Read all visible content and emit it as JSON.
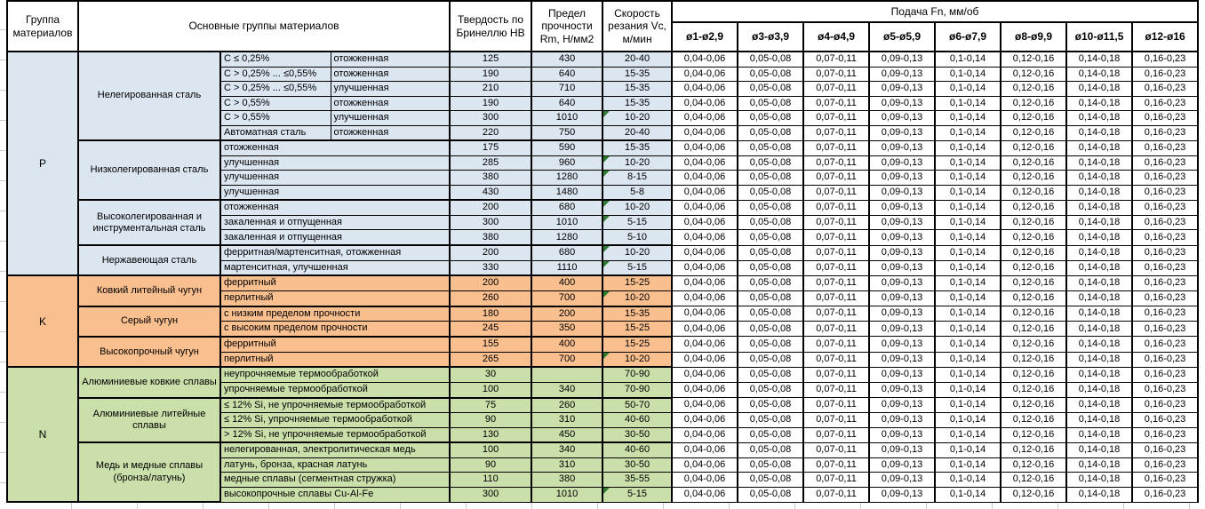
{
  "header": {
    "col_group": "Группа материалов",
    "col_main": "Основные группы материалов",
    "col_hb": "Твердость по Бринеллю HB",
    "col_rm": "Предел прочности Rm, Н/мм2",
    "col_vc": "Скорость резания Vc, м/мин",
    "feed_title": "Подача Fn, мм/об",
    "feed_cols": [
      "ø1-ø2,9",
      "ø3-ø3,9",
      "ø4-ø4,9",
      "ø5-ø5,9",
      "ø6-ø7,9",
      "ø8-ø9,9",
      "ø10-ø11,5",
      "ø12-ø16"
    ]
  },
  "feed_values": [
    "0,04-0,06",
    "0,05-0,08",
    "0,07-0,11",
    "0,09-0,13",
    "0,1-0,14",
    "0,12-0,16",
    "0,14-0,18",
    "0,16-0,23"
  ],
  "colors": {
    "group_p": "#dce6f1",
    "group_k": "#fabf8f",
    "group_n": "#cadfa9",
    "flag_triangle": "#2e7d32",
    "border": "#000000"
  },
  "groups": [
    {
      "letter": "P",
      "color": "#dce6f1",
      "subgroups": [
        {
          "name": "Нелегированная сталь",
          "rows": [
            {
              "desc": [
                "C ≤ 0,25%",
                "отожженная"
              ],
              "hb": "125",
              "rm": "430",
              "vc": "20-40",
              "flag": false
            },
            {
              "desc": [
                "C > 0,25% ... ≤0,55%",
                "отожженная"
              ],
              "hb": "190",
              "rm": "640",
              "vc": "15-35",
              "flag": false
            },
            {
              "desc": [
                "C > 0,25% ... ≤0,55%",
                "улучшенная"
              ],
              "hb": "210",
              "rm": "710",
              "vc": "15-35",
              "flag": false
            },
            {
              "desc": [
                "C > 0,55%",
                "отожженная"
              ],
              "hb": "190",
              "rm": "640",
              "vc": "15-35",
              "flag": false
            },
            {
              "desc": [
                "C > 0,55%",
                "улучшенная"
              ],
              "hb": "300",
              "rm": "1010",
              "vc": "10-20",
              "flag": true
            },
            {
              "desc": [
                "Автоматная сталь",
                "отожженная"
              ],
              "hb": "220",
              "rm": "750",
              "vc": "20-40",
              "flag": false
            }
          ]
        },
        {
          "name": "Низколегированная сталь",
          "rows": [
            {
              "desc": [
                "отожженная"
              ],
              "hb": "175",
              "rm": "590",
              "vc": "15-35",
              "flag": false
            },
            {
              "desc": [
                "улучшенная"
              ],
              "hb": "285",
              "rm": "960",
              "vc": "10-20",
              "flag": true
            },
            {
              "desc": [
                "улучшенная"
              ],
              "hb": "380",
              "rm": "1280",
              "vc": "8-15",
              "flag": true
            },
            {
              "desc": [
                "улучшенная"
              ],
              "hb": "430",
              "rm": "1480",
              "vc": "5-8",
              "flag": false
            }
          ]
        },
        {
          "name": "Высоколегированная и инструментальная сталь",
          "rows": [
            {
              "desc": [
                "отожженная"
              ],
              "hb": "200",
              "rm": "680",
              "vc": "10-20",
              "flag": true
            },
            {
              "desc": [
                "закаленная и отпущенная"
              ],
              "hb": "300",
              "rm": "1010",
              "vc": "5-15",
              "flag": true
            },
            {
              "desc": [
                "закаленная и отпущенная"
              ],
              "hb": "380",
              "rm": "1280",
              "vc": "5-10",
              "flag": false
            }
          ]
        },
        {
          "name": "Нержавеющая сталь",
          "rows": [
            {
              "desc": [
                "ферритная/мартенситная, отожженная"
              ],
              "hb": "200",
              "rm": "680",
              "vc": "10-20",
              "flag": true
            },
            {
              "desc": [
                "мартенситная, улучшенная"
              ],
              "hb": "330",
              "rm": "1110",
              "vc": "5-15",
              "flag": true
            }
          ]
        }
      ]
    },
    {
      "letter": "K",
      "color": "#fabf8f",
      "subgroups": [
        {
          "name": "Ковкий литейный чугун",
          "rows": [
            {
              "desc": [
                "ферритный"
              ],
              "hb": "200",
              "rm": "400",
              "vc": "15-25",
              "flag": false
            },
            {
              "desc": [
                "перлитный"
              ],
              "hb": "260",
              "rm": "700",
              "vc": "10-20",
              "flag": true
            }
          ]
        },
        {
          "name": "Серый чугун",
          "rows": [
            {
              "desc": [
                "с низким пределом прочности"
              ],
              "hb": "180",
              "rm": "200",
              "vc": "15-35",
              "flag": false
            },
            {
              "desc": [
                "с высоким пределом прочности"
              ],
              "hb": "245",
              "rm": "350",
              "vc": "15-25",
              "flag": false
            }
          ]
        },
        {
          "name": "Высокопрочный чугун",
          "rows": [
            {
              "desc": [
                "ферритный"
              ],
              "hb": "155",
              "rm": "400",
              "vc": "15-25",
              "flag": false
            },
            {
              "desc": [
                "перлитный"
              ],
              "hb": "265",
              "rm": "700",
              "vc": "10-20",
              "flag": true
            }
          ]
        }
      ]
    },
    {
      "letter": "N",
      "color": "#cadfa9",
      "subgroups": [
        {
          "name": "Алюминиевые ковкие сплавы",
          "rows": [
            {
              "desc": [
                "неупрочняемые термообработкой"
              ],
              "hb": "30",
              "rm": "",
              "vc": "70-90",
              "flag": false
            },
            {
              "desc": [
                "упрочняемые термообработкой"
              ],
              "hb": "100",
              "rm": "340",
              "vc": "70-90",
              "flag": false
            }
          ]
        },
        {
          "name": "Алюминиевые литейные сплавы",
          "rows": [
            {
              "desc": [
                "≤ 12% Si, не упрочняемые термообработкой"
              ],
              "hb": "75",
              "rm": "260",
              "vc": "50-70",
              "flag": false
            },
            {
              "desc": [
                "≤ 12% Si, упрочняемые термообработкой"
              ],
              "hb": "90",
              "rm": "310",
              "vc": "40-60",
              "flag": false
            },
            {
              "desc": [
                "> 12% Si, не упрочняемые термообработкой"
              ],
              "hb": "130",
              "rm": "450",
              "vc": "30-50",
              "flag": false
            }
          ]
        },
        {
          "name": "Медь и медные сплавы (бронза/латунь)",
          "rows": [
            {
              "desc": [
                "нелегированная, электролитическая медь"
              ],
              "hb": "100",
              "rm": "340",
              "vc": "40-60",
              "flag": false
            },
            {
              "desc": [
                "латунь, бронза, красная латунь"
              ],
              "hb": "90",
              "rm": "310",
              "vc": "30-50",
              "flag": false
            },
            {
              "desc": [
                "медные сплавы (сегментная стружка)"
              ],
              "hb": "110",
              "rm": "380",
              "vc": "35-55",
              "flag": false
            },
            {
              "desc": [
                "высокопрочные сплавы Cu-Al-Fe"
              ],
              "hb": "300",
              "rm": "1010",
              "vc": "5-15",
              "flag": true
            }
          ]
        }
      ]
    }
  ]
}
